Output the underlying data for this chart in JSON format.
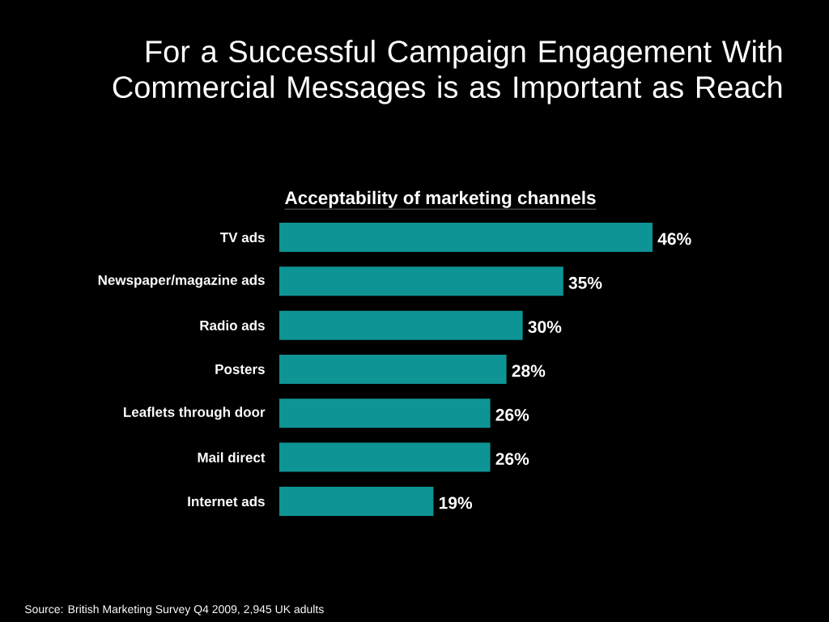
{
  "chart_data": {
    "type": "bar",
    "orientation": "horizontal",
    "title": "For a Successful Campaign Engagement With Commercial Messages is as Important as Reach",
    "subtitle": "Acceptability of marketing channels",
    "categories": [
      "TV ads",
      "Newspaper/magazine ads",
      "Radio ads",
      "Posters",
      "Leaflets through door",
      "Mail direct",
      "Internet ads"
    ],
    "values": [
      46,
      35,
      30,
      28,
      26,
      26,
      19
    ],
    "value_labels": [
      "46%",
      "35%",
      "30%",
      "28%",
      "26%",
      "26%",
      "19%"
    ],
    "color": "#0e9494",
    "annotations": [
      "Source: British Marketing Survey Q4 2009, 2,945 UK adults"
    ]
  }
}
